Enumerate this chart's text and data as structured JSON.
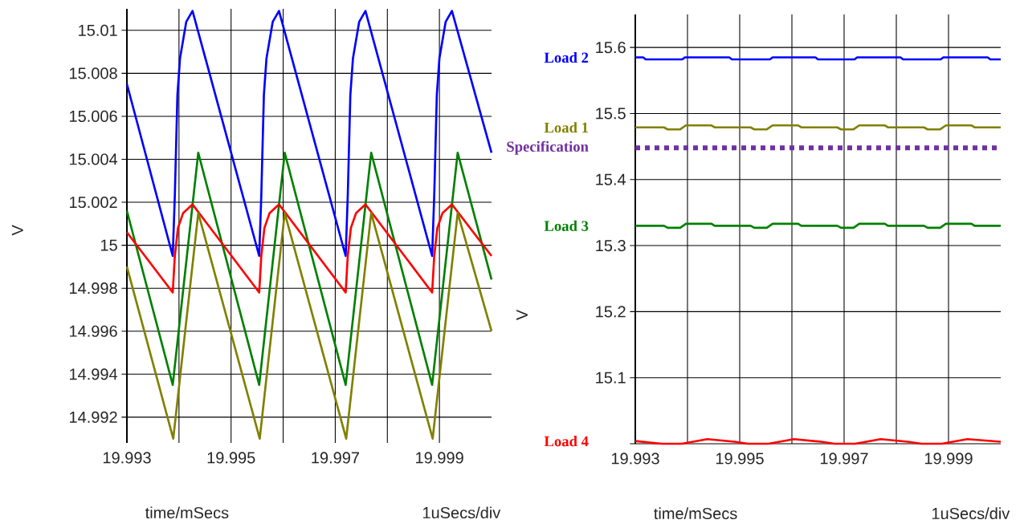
{
  "chart_data": [
    {
      "type": "line",
      "xlabel": "time/mSecs",
      "ylabel": "V",
      "annotations": [
        "1uSecs/div"
      ],
      "grid": true,
      "xlim": [
        19.993,
        20.0
      ],
      "xticks": [
        19.993,
        {
          "value": 19.994,
          "label": null
        },
        19.995,
        {
          "value": 19.996,
          "label": null
        },
        19.997,
        {
          "value": 19.998,
          "label": null
        },
        19.999
      ],
      "ylim": [
        14.9908,
        15.011
      ],
      "yticks": [
        14.992,
        14.994,
        14.996,
        14.998,
        15,
        15.002,
        15.004,
        15.006,
        15.008,
        15.01
      ],
      "series": [
        {
          "color": "#0000ff",
          "x": [
            19.993,
            19.99388,
            19.99392,
            19.99397,
            19.99402,
            19.99414,
            19.99426,
            19.99554,
            19.99558,
            19.99563,
            19.99568,
            19.9958,
            19.99592,
            19.9972,
            19.99724,
            19.99729,
            19.99734,
            19.99746,
            19.99758,
            19.99886,
            19.9989,
            19.99895,
            19.999,
            19.99912,
            19.99924,
            20.0
          ],
          "values": [
            15.0075,
            14.9995,
            15.0023,
            15.007,
            15.0087,
            15.0104,
            15.0109,
            14.9995,
            15.0023,
            15.007,
            15.0087,
            15.0104,
            15.0109,
            14.9995,
            15.0023,
            15.007,
            15.0087,
            15.0104,
            15.0109,
            14.9995,
            15.0023,
            15.007,
            15.0087,
            15.0104,
            15.0109,
            15.0043
          ]
        },
        {
          "color": "#008000",
          "x": [
            19.993,
            19.99388,
            19.99437,
            19.99554,
            19.99603,
            19.9972,
            19.99769,
            19.99886,
            19.99935,
            20.0
          ],
          "values": [
            15.0016,
            14.9935,
            15.0043,
            14.9935,
            15.0043,
            14.9935,
            15.0043,
            14.9935,
            15.0043,
            14.9984
          ]
        },
        {
          "color": "#ff0000",
          "x": [
            19.993,
            19.99388,
            19.99392,
            19.99398,
            19.99408,
            19.99426,
            19.99554,
            19.99558,
            19.99564,
            19.99574,
            19.99592,
            19.9972,
            19.99724,
            19.9973,
            19.9974,
            19.99758,
            19.99886,
            19.9989,
            19.99896,
            19.99906,
            19.99924,
            20.0
          ],
          "values": [
            15.0006,
            14.9978,
            14.9995,
            15.0008,
            15.0015,
            15.0019,
            14.9978,
            14.9995,
            15.0008,
            15.0015,
            15.0019,
            14.9978,
            14.9995,
            15.0008,
            15.0015,
            15.0019,
            14.9978,
            14.9995,
            15.0008,
            15.0015,
            15.0019,
            14.9995
          ]
        },
        {
          "color": "#808000",
          "x": [
            19.993,
            19.99389,
            19.99437,
            19.99555,
            19.99603,
            19.99721,
            19.99769,
            19.99887,
            19.99935,
            20.0
          ],
          "values": [
            14.999,
            14.991,
            15.0015,
            14.991,
            15.0015,
            14.991,
            15.0015,
            14.991,
            15.0015,
            14.996
          ]
        }
      ]
    },
    {
      "type": "line",
      "xlabel": "time/mSecs",
      "ylabel": "V",
      "annotations": [
        "1uSecs/div"
      ],
      "grid": true,
      "xlim": [
        19.993,
        20.0
      ],
      "xticks": [
        19.993,
        {
          "value": 19.994,
          "label": null
        },
        19.995,
        {
          "value": 19.996,
          "label": null
        },
        19.997,
        {
          "value": 19.998,
          "label": null
        },
        19.999
      ],
      "ylim": [
        15,
        15.65
      ],
      "yticks": [
        {
          "value": 15,
          "label": null
        },
        15.1,
        15.2,
        15.3,
        15.4,
        15.5,
        15.6
      ],
      "ref_lines": [
        {
          "axis": "y",
          "value": 15.448,
          "label": "Specification",
          "color": "#7030a0",
          "line_style": "dotted"
        }
      ],
      "series": [
        {
          "name": "Load 2",
          "color": "#0000ff",
          "x": [
            19.993,
            19.99315,
            19.9932,
            19.9939,
            19.99395,
            19.9948,
            19.99485,
            19.99558,
            19.99563,
            19.99645,
            19.9965,
            19.9972,
            19.99725,
            19.99808,
            19.99813,
            19.99885,
            19.9989,
            19.99975,
            19.9998,
            20.0
          ],
          "values": [
            15.585,
            15.585,
            15.582,
            15.582,
            15.585,
            15.585,
            15.582,
            15.582,
            15.585,
            15.585,
            15.582,
            15.582,
            15.585,
            15.585,
            15.582,
            15.582,
            15.585,
            15.585,
            15.582,
            15.582
          ]
        },
        {
          "name": "Load 1",
          "color": "#808000",
          "x": [
            19.993,
            19.99355,
            19.99362,
            19.99386,
            19.99397,
            19.99446,
            19.99452,
            19.99521,
            19.99528,
            19.99552,
            19.99563,
            19.99612,
            19.99618,
            19.99687,
            19.99694,
            19.99718,
            19.99729,
            19.99778,
            19.99784,
            19.99853,
            19.9986,
            19.99884,
            19.99895,
            19.99944,
            19.9995,
            20.0
          ],
          "values": [
            15.479,
            15.479,
            15.476,
            15.476,
            15.482,
            15.482,
            15.479,
            15.479,
            15.476,
            15.476,
            15.482,
            15.482,
            15.479,
            15.479,
            15.476,
            15.476,
            15.482,
            15.482,
            15.479,
            15.479,
            15.476,
            15.476,
            15.482,
            15.482,
            15.479,
            15.479
          ]
        },
        {
          "name": "Load 3",
          "color": "#008000",
          "x": [
            19.993,
            19.99355,
            19.99362,
            19.99386,
            19.99397,
            19.99446,
            19.99452,
            19.99521,
            19.99528,
            19.99552,
            19.99563,
            19.99612,
            19.99618,
            19.99687,
            19.99694,
            19.99718,
            19.99729,
            19.99778,
            19.99784,
            19.99853,
            19.9986,
            19.99884,
            19.99895,
            19.99944,
            19.9995,
            20.0
          ],
          "values": [
            15.33,
            15.33,
            15.327,
            15.327,
            15.333,
            15.333,
            15.33,
            15.33,
            15.327,
            15.327,
            15.333,
            15.333,
            15.33,
            15.33,
            15.327,
            15.327,
            15.333,
            15.333,
            15.33,
            15.33,
            15.327,
            15.327,
            15.333,
            15.333,
            15.33,
            15.33
          ]
        },
        {
          "name": "Load 4",
          "color": "#ff0000",
          "x": [
            19.993,
            19.9935,
            19.99389,
            19.99438,
            19.9949,
            19.99516,
            19.99555,
            19.99604,
            19.99656,
            19.99682,
            19.99721,
            19.9977,
            19.99822,
            19.99848,
            19.99887,
            19.99936,
            20.0
          ],
          "values": [
            15.004,
            15.0,
            15.0,
            15.007,
            15.003,
            15.0,
            15.0,
            15.007,
            15.003,
            15.0,
            15.0,
            15.007,
            15.003,
            15.0,
            15.0,
            15.007,
            15.003
          ]
        }
      ]
    }
  ]
}
